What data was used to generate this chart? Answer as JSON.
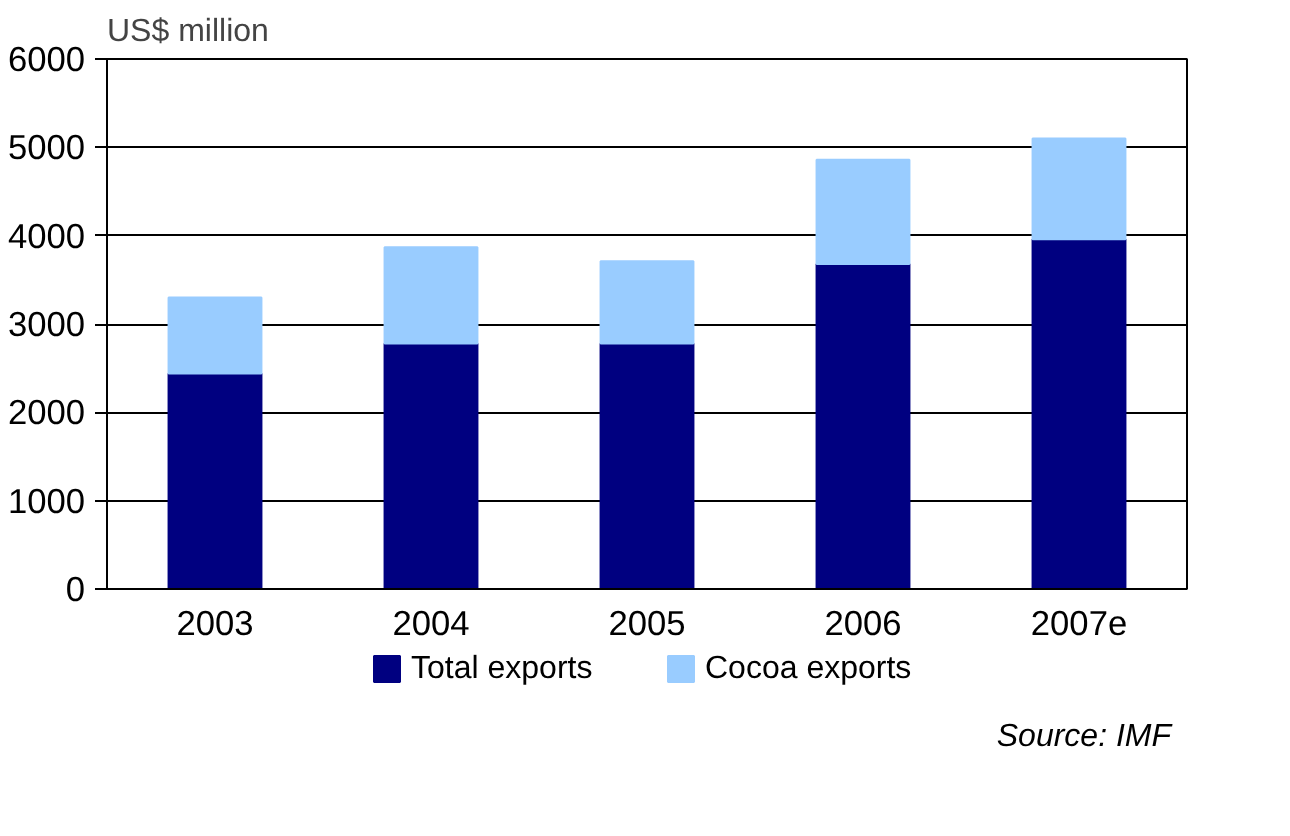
{
  "chart_data": {
    "type": "bar",
    "stacked": true,
    "ylabel": "US$ million",
    "categories": [
      "2003",
      "2004",
      "2005",
      "2006",
      "2007e"
    ],
    "series": [
      {
        "name": "Total exports",
        "color": "#000080",
        "values": [
          2440,
          2780,
          2780,
          3680,
          3960
        ]
      },
      {
        "name": "Cocoa exports",
        "color": "#99ccff",
        "values": [
          860,
          1090,
          930,
          1180,
          1140
        ]
      }
    ],
    "ylim": [
      0,
      6000
    ],
    "yticks": [
      0,
      1000,
      2000,
      3000,
      4000,
      5000,
      6000
    ],
    "grid": "y",
    "legend": "bottom",
    "annotations": [
      "Source: IMF"
    ]
  }
}
